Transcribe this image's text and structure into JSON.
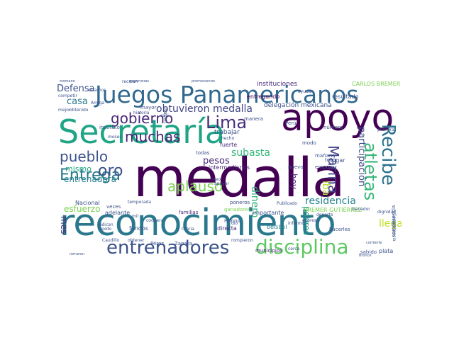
{
  "words": [
    {
      "text": "medalla",
      "color": "#440154"
    },
    {
      "text": "reconocimiento",
      "color": "#2a788e"
    },
    {
      "text": "apoyo",
      "color": "#440154"
    },
    {
      "text": "Secretaría",
      "color": "#20a486"
    },
    {
      "text": "Juegos Panamericanos",
      "color": "#31688e"
    },
    {
      "text": "entrenadores",
      "color": "#3b528b"
    },
    {
      "text": "disciplina",
      "color": "#5ec962"
    },
    {
      "text": "Recibe",
      "color": "#2c728e"
    },
    {
      "text": "atletas",
      "color": "#35b779"
    },
    {
      "text": "gobierno",
      "color": "#482878"
    },
    {
      "text": "muchas",
      "color": "#482475"
    },
    {
      "text": "Entrega",
      "color": "#2a788e"
    },
    {
      "text": "pueblo",
      "color": "#3b528b"
    },
    {
      "text": "oro",
      "color": "#3b528b"
    },
    {
      "text": "Lima",
      "color": "#472d7b"
    },
    {
      "text": "Marina",
      "color": "#414487"
    },
    {
      "text": "aplauso",
      "color": "#7ad151"
    },
    {
      "text": "obtuvieron medalla",
      "color": "#414487"
    },
    {
      "text": "subasta",
      "color": "#35b779"
    },
    {
      "text": "pesos",
      "color": "#482878"
    },
    {
      "text": "residencia",
      "color": "#25848e"
    },
    {
      "text": "entrenadora",
      "color": "#25848e"
    },
    {
      "text": "esfuerzo",
      "color": "#7ad151"
    },
    {
      "text": "mismo",
      "color": "#22a884"
    },
    {
      "text": "casa",
      "color": "#2a788e"
    },
    {
      "text": "Defensa",
      "color": "#3b528b"
    },
    {
      "text": "llega",
      "color": "#bddf26"
    },
    {
      "text": "dinero",
      "color": "#2fb47c"
    },
    {
      "text": "participación",
      "color": "#3e4989"
    },
    {
      "text": "iba",
      "color": "#b5de2b"
    },
    {
      "text": "hoy",
      "color": "#482475"
    },
    {
      "text": "pobres",
      "color": "#1f9e89"
    },
    {
      "text": "mes",
      "color": "#482878"
    },
    {
      "text": "CARLOS BREMER",
      "color": "#7ad151"
    },
    {
      "text": "BREMER GUTIÉRREZ",
      "color": "#7ad151"
    },
    {
      "text": "delegación mexicana",
      "color": "#3b528b"
    },
    {
      "text": "trabajar",
      "color": "#3b528b"
    },
    {
      "text": "instituciones",
      "color": "#482878"
    },
    {
      "text": "resultado",
      "color": "#3b528b"
    },
    {
      "text": "entregando",
      "color": "#440154"
    },
    {
      "text": "intermediarios",
      "color": "#482878"
    },
    {
      "text": "béisbol",
      "color": "#26828e"
    },
    {
      "text": "importante",
      "color": "#3b528b"
    },
    {
      "text": "municipios",
      "color": "#482878"
    },
    {
      "text": "Nacional",
      "color": "#3b528b"
    },
    {
      "text": "adelante",
      "color": "#3b528b"
    },
    {
      "text": "familias",
      "color": "#482878"
    },
    {
      "text": "fondos",
      "color": "#3b528b"
    },
    {
      "text": "directa",
      "color": "#482878"
    },
    {
      "text": "Pérez",
      "color": "#3b528b"
    },
    {
      "text": "Zapata",
      "color": "#3b528b"
    },
    {
      "text": "fuerte",
      "color": "#482878"
    },
    {
      "text": "todas",
      "color": "#3b528b"
    },
    {
      "text": "lugar",
      "color": "#3b528b"
    },
    {
      "text": "número",
      "color": "#3b528b"
    },
    {
      "text": "mañana",
      "color": "#3b528b"
    },
    {
      "text": "tocó",
      "color": "#3b528b"
    },
    {
      "text": "modo",
      "color": "#3b528b"
    },
    {
      "text": "Perú",
      "color": "#3b528b"
    },
    {
      "text": "sabido",
      "color": "#3b528b"
    },
    {
      "text": "plata",
      "color": "#3b528b"
    },
    {
      "text": "dignidad",
      "color": "#3b528b"
    },
    {
      "text": "veces",
      "color": "#3b528b"
    },
    {
      "text": "mayor",
      "color": "#3b528b"
    },
    {
      "text": "hacerles",
      "color": "#3b528b"
    },
    {
      "text": "deporte",
      "color": "#3b528b"
    },
    {
      "text": "ganadores",
      "color": "#7ad151"
    },
    {
      "text": "manera",
      "color": "#3b528b"
    },
    {
      "text": "hecho",
      "color": "#3b528b"
    },
    {
      "text": "empezar",
      "color": "#3b528b"
    },
    {
      "text": "primera",
      "color": "#3b528b"
    },
    {
      "text": "historia",
      "color": "#3b528b"
    },
    {
      "text": "competir",
      "color": "#3b528b"
    },
    {
      "text": "nuevo",
      "color": "#3b528b"
    },
    {
      "text": "expreso",
      "color": "#3b528b"
    },
    {
      "text": "Publicado",
      "color": "#3b528b"
    },
    {
      "text": "Amiga",
      "color": "#3b528b"
    },
    {
      "text": "obtener",
      "color": "#3b528b"
    },
    {
      "text": "mejor",
      "color": "#3b528b"
    },
    {
      "text": "obtenido",
      "color": "#3b528b"
    },
    {
      "text": "Caudillo",
      "color": "#3b528b"
    },
    {
      "text": "ayudar",
      "color": "#3b528b"
    },
    {
      "text": "rompieron",
      "color": "#3b528b"
    },
    {
      "text": "poneros",
      "color": "#3b528b"
    },
    {
      "text": "reciban",
      "color": "#3b528b"
    },
    {
      "text": "cerca",
      "color": "#3b528b"
    },
    {
      "text": "casi",
      "color": "#3b528b"
    },
    {
      "text": "dio",
      "color": "#3b528b"
    },
    {
      "text": "creo",
      "color": "#3b528b"
    },
    {
      "text": "Himno",
      "color": "#3b528b"
    },
    {
      "text": "indican",
      "color": "#3b528b"
    },
    {
      "text": "rápido",
      "color": "#3b528b"
    },
    {
      "text": "hacen",
      "color": "#3b528b"
    },
    {
      "text": "apoyar",
      "color": "#3b528b"
    },
    {
      "text": "instituto",
      "color": "#3b528b"
    },
    {
      "text": "informo",
      "color": "#3b528b"
    },
    {
      "text": "estamos",
      "color": "#3b528b"
    },
    {
      "text": "Gloria",
      "color": "#3b528b"
    },
    {
      "text": "coopera",
      "color": "#3b528b"
    },
    {
      "text": "temporada",
      "color": "#3b528b"
    },
    {
      "text": "meses",
      "color": "#3b528b"
    },
    {
      "text": "mil",
      "color": "#3b528b"
    },
    {
      "text": "Montaño",
      "color": "#3b528b"
    },
    {
      "text": "deportistas",
      "color": "#3b528b"
    },
    {
      "text": "promoviendo",
      "color": "#3b528b"
    },
    {
      "text": "Ganador",
      "color": "#3b528b"
    },
    {
      "text": "competencia",
      "color": "#3b528b"
    },
    {
      "text": "corriente",
      "color": "#3b528b"
    },
    {
      "text": "remaron",
      "color": "#3b528b"
    },
    {
      "text": "Competencia",
      "color": "#3b528b"
    },
    {
      "text": "Bronce",
      "color": "#3b528b"
    }
  ]
}
